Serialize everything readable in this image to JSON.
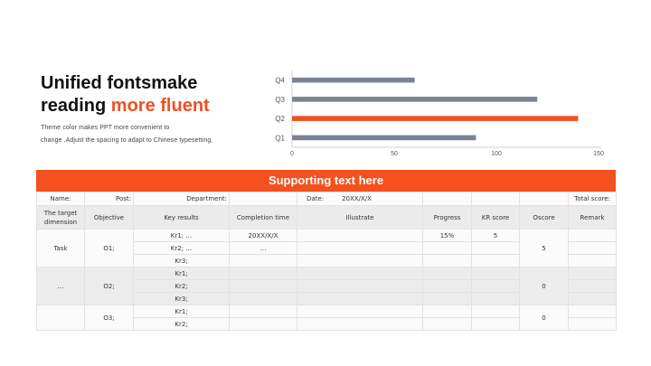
{
  "heading": {
    "line1": "Unified fontsmake",
    "line2_plain": "reading ",
    "line2_accent": "more fluent",
    "sub1": "Theme  color makes PPT more convenient  to",
    "sub2": "change .Adjust  the spacing to adapt to Chinese  typesetting,"
  },
  "colors": {
    "accent": "#f4511e",
    "bar": "#7b8490"
  },
  "chart_data": {
    "type": "bar",
    "orientation": "horizontal",
    "categories": [
      "Q1",
      "Q2",
      "Q3",
      "Q4"
    ],
    "values": [
      90,
      140,
      120,
      60
    ],
    "highlight": "Q2",
    "xlim": [
      0,
      150
    ],
    "xticks": [
      0,
      50,
      100,
      150
    ],
    "grid": false,
    "legend": "none"
  },
  "table": {
    "banner": "Supporting text here",
    "info": {
      "name": "Name:",
      "post": "Post:",
      "department": "Department:",
      "date": "Date:",
      "date_value": "20XX/X/X",
      "total": "Total score:"
    },
    "headers": [
      "The target dimension",
      "Objective",
      "Key results",
      "Completion time",
      "Illustrate",
      "Progress",
      "KR score",
      "Oscore",
      "Remark"
    ],
    "groups": [
      {
        "dimension": "Task",
        "objective": "O1;",
        "oscore": "5",
        "rows": [
          {
            "kr": "Kr1;  …",
            "time": "20XX/X/X",
            "progress": "15%",
            "kr_score": "5"
          },
          {
            "kr": "Kr2;  …",
            "time": "…",
            "progress": "",
            "kr_score": ""
          },
          {
            "kr": "Kr3;",
            "time": "",
            "progress": "",
            "kr_score": ""
          }
        ]
      },
      {
        "dimension": "…",
        "objective": "O2;",
        "oscore": "0",
        "rows": [
          {
            "kr": "Kr1;",
            "time": "",
            "progress": "",
            "kr_score": ""
          },
          {
            "kr": "Kr2;",
            "time": "",
            "progress": "",
            "kr_score": ""
          },
          {
            "kr": "Kr3;",
            "time": "",
            "progress": "",
            "kr_score": ""
          }
        ]
      },
      {
        "dimension": "",
        "objective": "O3;",
        "oscore": "0",
        "rows": [
          {
            "kr": "Kr1;",
            "time": "",
            "progress": "",
            "kr_score": ""
          },
          {
            "kr": "Kr2;",
            "time": "",
            "progress": "",
            "kr_score": ""
          }
        ]
      }
    ]
  }
}
